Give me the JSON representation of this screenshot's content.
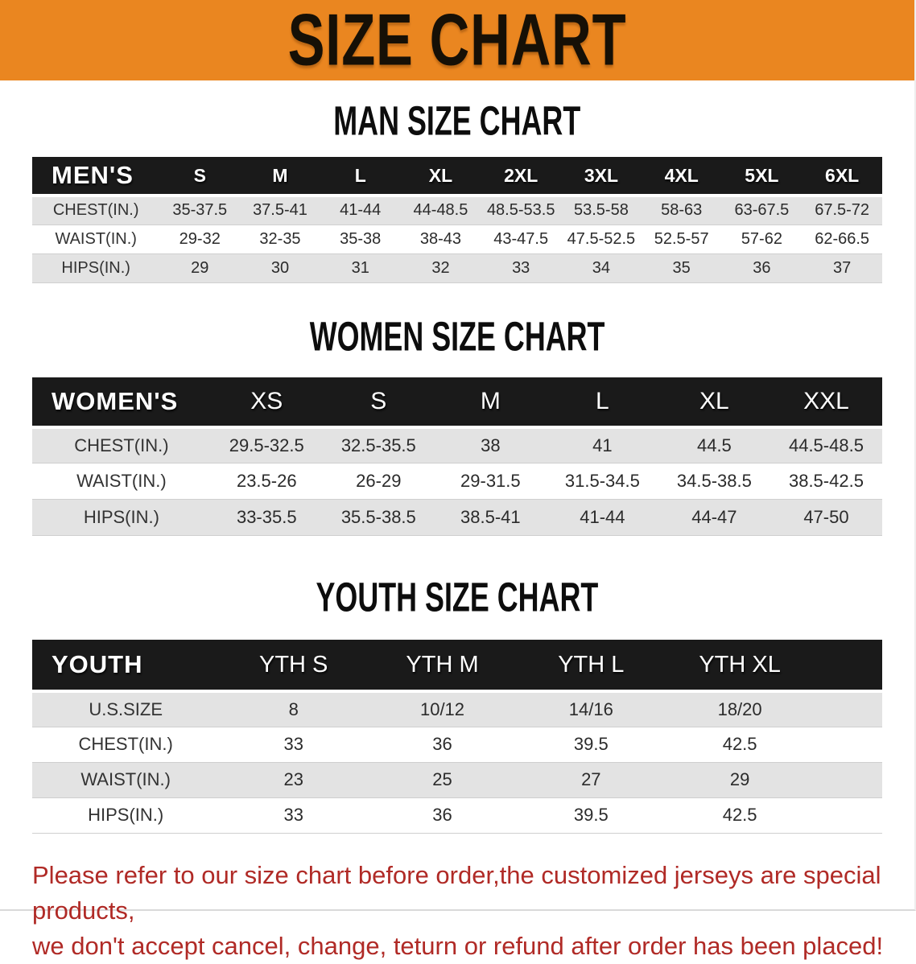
{
  "banner": {
    "title": "SIZE CHART"
  },
  "colors": {
    "banner_bg": "#EA8620",
    "header_bg": "#1A1A1A",
    "row_alt_bg": "#E3E3E3",
    "disclaimer_red": "#B02A26"
  },
  "sections": [
    {
      "heading": "MAN SIZE CHART",
      "table": {
        "label": "MEN'S",
        "columns": [
          "S",
          "M",
          "L",
          "XL",
          "2XL",
          "3XL",
          "4XL",
          "5XL",
          "6XL"
        ],
        "rows": [
          {
            "label": "CHEST(IN.)",
            "values": [
              "35-37.5",
              "37.5-41",
              "41-44",
              "44-48.5",
              "48.5-53.5",
              "53.5-58",
              "58-63",
              "63-67.5",
              "67.5-72"
            ]
          },
          {
            "label": "WAIST(IN.)",
            "values": [
              "29-32",
              "32-35",
              "35-38",
              "38-43",
              "43-47.5",
              "47.5-52.5",
              "52.5-57",
              "57-62",
              "62-66.5"
            ]
          },
          {
            "label": "HIPS(IN.)",
            "values": [
              "29",
              "30",
              "31",
              "32",
              "33",
              "34",
              "35",
              "36",
              "37"
            ]
          }
        ]
      }
    },
    {
      "heading": "WOMEN SIZE CHART",
      "table": {
        "label": "WOMEN'S",
        "columns": [
          "XS",
          "S",
          "M",
          "L",
          "XL",
          "XXL"
        ],
        "rows": [
          {
            "label": "CHEST(IN.)",
            "values": [
              "29.5-32.5",
              "32.5-35.5",
              "38",
              "41",
              "44.5",
              "44.5-48.5"
            ]
          },
          {
            "label": "WAIST(IN.)",
            "values": [
              "23.5-26",
              "26-29",
              "29-31.5",
              "31.5-34.5",
              "34.5-38.5",
              "38.5-42.5"
            ]
          },
          {
            "label": "HIPS(IN.)",
            "values": [
              "33-35.5",
              "35.5-38.5",
              "38.5-41",
              "41-44",
              "44-47",
              "47-50"
            ]
          }
        ]
      }
    },
    {
      "heading": "YOUTH SIZE CHART",
      "table": {
        "label": "YOUTH",
        "columns": [
          "YTH S",
          "YTH M",
          "YTH L",
          "YTH XL"
        ],
        "rows": [
          {
            "label": "U.S.SIZE",
            "values": [
              "8",
              "10/12",
              "14/16",
              "18/20"
            ]
          },
          {
            "label": "CHEST(IN.)",
            "values": [
              "33",
              "36",
              "39.5",
              "42.5"
            ]
          },
          {
            "label": "WAIST(IN.)",
            "values": [
              "23",
              "25",
              "27",
              "29"
            ]
          },
          {
            "label": "HIPS(IN.)",
            "values": [
              "33",
              "36",
              "39.5",
              "42.5"
            ]
          }
        ]
      }
    }
  ],
  "disclaimer": {
    "line1": "Please refer to our size chart before order,the customized jerseys are special products,",
    "line2": "we don't accept cancel, change, teturn or refund after order has been placed!"
  }
}
